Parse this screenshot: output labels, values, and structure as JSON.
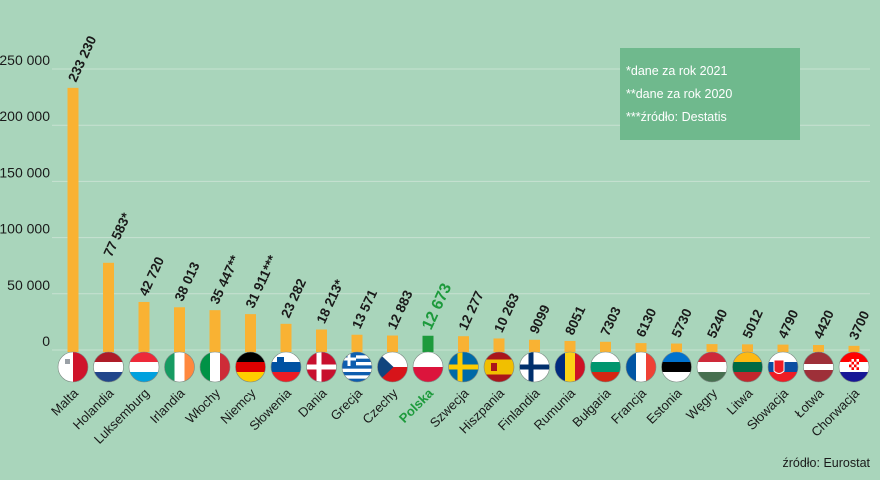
{
  "chart_data": {
    "type": "bar",
    "categories": [
      "Malta",
      "Holandia",
      "Luksemburg",
      "Irlandia",
      "Włochy",
      "Niemcy",
      "Słowenia",
      "Dania",
      "Grecja",
      "Czechy",
      "Polska",
      "Szwecja",
      "Hiszpania",
      "Finlandia",
      "Rumunia",
      "Bułgaria",
      "Francja",
      "Estonia",
      "Węgry",
      "Litwa",
      "Słowacja",
      "Łotwa",
      "Chorwacja"
    ],
    "values": [
      233230,
      77583,
      42720,
      38013,
      35447,
      31911,
      23282,
      18213,
      13571,
      12883,
      12673,
      12277,
      10263,
      9099,
      8051,
      7303,
      6130,
      5730,
      5240,
      5012,
      4790,
      4420,
      3700
    ],
    "value_labels": [
      "233 230",
      "77 583*",
      "42 720",
      "38 013",
      "35 447**",
      "31 911***",
      "23 282",
      "18 213*",
      "13 571",
      "12 883",
      "12 673",
      "12 277",
      "10 263",
      "9099",
      "8051",
      "7303",
      "6130",
      "5730",
      "5240",
      "5012",
      "4790",
      "4420",
      "3700"
    ],
    "highlight": "Polska",
    "highlight_color": "#1d9a3c",
    "bar_color": "#f9b233",
    "yticks": [
      0,
      50000,
      100000,
      150000,
      200000,
      250000
    ],
    "ytick_labels": [
      "0",
      "50 000",
      "100 000",
      "150 000",
      "200 000",
      "250 000"
    ],
    "ylim": [
      0,
      262000
    ],
    "xlabel": "",
    "ylabel": "",
    "title": "",
    "grid": true,
    "legend": "none",
    "flags": [
      "malta",
      "netherlands",
      "luxembourg",
      "ireland",
      "italy",
      "germany",
      "slovenia",
      "denmark",
      "greece",
      "czechia",
      "poland",
      "sweden",
      "spain",
      "finland",
      "romania",
      "bulgaria",
      "france",
      "estonia",
      "hungary",
      "lithuania",
      "slovakia",
      "latvia",
      "croatia"
    ]
  },
  "notes": {
    "n1": "*dane za rok 2021",
    "n2": "**dane za rok 2020",
    "n3": "***źródło: Destatis"
  },
  "source": "źródło: Eurostat"
}
